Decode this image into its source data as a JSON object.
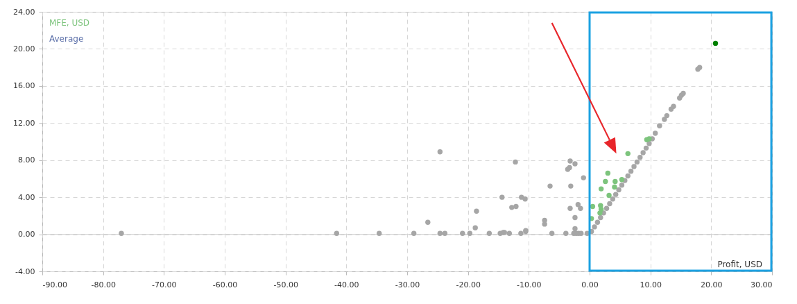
{
  "chart_data": {
    "type": "scatter",
    "xlabel": "Profit, USD",
    "annotations": [
      "Average"
    ],
    "xlim": [
      -90,
      30
    ],
    "xticks": [
      {
        "value": -90,
        "label": "-90.00"
      },
      {
        "value": -80,
        "label": "-80.00"
      },
      {
        "value": -70,
        "label": "-70.00"
      },
      {
        "value": -60,
        "label": "-60.00"
      },
      {
        "value": -50,
        "label": "-50.00"
      },
      {
        "value": -40,
        "label": "-40.00"
      },
      {
        "value": -30,
        "label": "-30.00"
      },
      {
        "value": -20,
        "label": "-20.00"
      },
      {
        "value": -10,
        "label": "-10.00"
      },
      {
        "value": 0,
        "label": "0.00"
      },
      {
        "value": 10,
        "label": "10.00"
      },
      {
        "value": 20,
        "label": "20.00"
      },
      {
        "value": 30,
        "label": "30.00"
      }
    ],
    "ylim": [
      -4,
      24
    ],
    "yticks": [
      {
        "value": -4,
        "label": "-4.00"
      },
      {
        "value": 0,
        "label": "0.00"
      },
      {
        "value": 4,
        "label": "4.00"
      },
      {
        "value": 8,
        "label": "8.00"
      },
      {
        "value": 12,
        "label": "12.00"
      },
      {
        "value": 16,
        "label": "16.00"
      },
      {
        "value": 20,
        "label": "20.00"
      },
      {
        "value": 24,
        "label": "24.00"
      }
    ],
    "grid": true,
    "marker": "circle",
    "ref_lines": [
      {
        "axis": "y",
        "value": 0,
        "color": "#d0d0d0"
      }
    ],
    "series": [
      {
        "color": "#a6a6a6",
        "x": [
          -77,
          -41.6,
          -34.6,
          -28.9,
          -24.6,
          -23.8,
          -20.9,
          -19.7,
          -16.5,
          -14.7,
          -14.2,
          -13.2,
          -11.3,
          -10.5,
          -6.2,
          -3.9,
          -2.6,
          -2.2,
          -1.8,
          -1.4,
          -0.4,
          -24.6,
          -12.2,
          -3.2,
          -2.4,
          -3.3,
          -3.6,
          -1,
          -6.5,
          -3.1,
          -14.4,
          -11.2,
          -10.6,
          -1.9,
          -1.5,
          -12.8,
          -12.1,
          -18.6,
          -3.2,
          -2.4,
          -26.6,
          -7.4,
          -7.4,
          -18.8,
          -2.4,
          -10.5,
          -14,
          0.3,
          0.8,
          1.3,
          1.8,
          2.3,
          2.8,
          3.3,
          3.8,
          4.3,
          4.8,
          5.3,
          5.8,
          6.3,
          6.8,
          7.3,
          7.8,
          8.3,
          8.8,
          9.3,
          9.8,
          10.3,
          10.8,
          11.5,
          12.3,
          12.7,
          13.4,
          13.8,
          14.8,
          15.1,
          15.4,
          17.8,
          18.1
        ],
        "values": [
          0.1,
          0.1,
          0.1,
          0.1,
          0.1,
          0.1,
          0.1,
          0.1,
          0.1,
          0.1,
          0.2,
          0.1,
          0.1,
          0.3,
          0.1,
          0.1,
          0.1,
          0.1,
          0.1,
          0.1,
          0.1,
          8.9,
          7.8,
          7.9,
          7.6,
          7.2,
          7,
          6.1,
          5.2,
          5.2,
          4,
          4,
          3.8,
          3.2,
          2.8,
          2.9,
          3,
          2.5,
          2.8,
          1.8,
          1.3,
          1.5,
          1.1,
          0.7,
          0.6,
          0.4,
          0.2,
          0.3,
          0.8,
          1.3,
          1.8,
          2.3,
          2.8,
          3.3,
          3.8,
          4.3,
          4.8,
          5.3,
          5.8,
          6.3,
          6.8,
          7.3,
          7.8,
          8.3,
          8.8,
          9.3,
          9.8,
          10.3,
          10.9,
          11.7,
          12.4,
          12.8,
          13.5,
          13.8,
          14.7,
          15,
          15.2,
          17.8,
          18
        ]
      },
      {
        "name": "MFE, USD",
        "color": "#7dc47d",
        "x": [
          9.4,
          9.8,
          6.3,
          3,
          2.6,
          4.2,
          1.9,
          4.1,
          5.3,
          3.2,
          0.5,
          1.8,
          1.9,
          1.7,
          0.3
        ],
        "values": [
          10.2,
          10.3,
          8.7,
          6.6,
          5.7,
          5.7,
          4.9,
          5.1,
          5.9,
          4.2,
          3,
          3.1,
          2.7,
          2.3,
          1.7
        ]
      },
      {
        "color": "#008000",
        "x": [
          20.7
        ],
        "values": [
          20.6
        ]
      }
    ]
  }
}
